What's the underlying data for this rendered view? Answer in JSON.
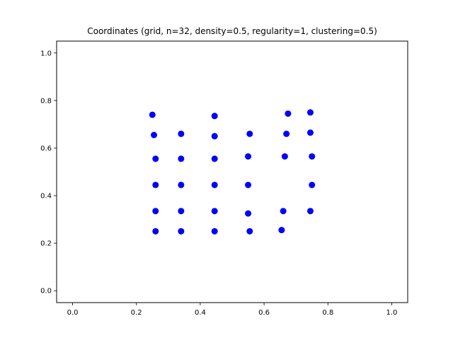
{
  "chart_data": {
    "type": "scatter",
    "title": "Coordinates (grid, n=32, density=0.5, regularity=1, clustering=0.5)",
    "xlabel": "",
    "ylabel": "",
    "xlim": [
      -0.05,
      1.05
    ],
    "ylim": [
      -0.05,
      1.05
    ],
    "xticks": [
      "0.0",
      "0.2",
      "0.4",
      "0.6",
      "0.8",
      "1.0"
    ],
    "yticks": [
      "0.0",
      "0.2",
      "0.4",
      "0.6",
      "0.8",
      "1.0"
    ],
    "grid": false,
    "legend": "none",
    "marker_color": "#0000ff",
    "series": [
      {
        "points": [
          [
            0.25,
            0.74
          ],
          [
            0.445,
            0.735
          ],
          [
            0.675,
            0.745
          ],
          [
            0.745,
            0.75
          ],
          [
            0.255,
            0.655
          ],
          [
            0.34,
            0.66
          ],
          [
            0.445,
            0.65
          ],
          [
            0.555,
            0.66
          ],
          [
            0.67,
            0.66
          ],
          [
            0.745,
            0.665
          ],
          [
            0.26,
            0.555
          ],
          [
            0.34,
            0.555
          ],
          [
            0.445,
            0.555
          ],
          [
            0.55,
            0.565
          ],
          [
            0.665,
            0.565
          ],
          [
            0.75,
            0.565
          ],
          [
            0.26,
            0.445
          ],
          [
            0.34,
            0.445
          ],
          [
            0.445,
            0.445
          ],
          [
            0.55,
            0.445
          ],
          [
            0.75,
            0.445
          ],
          [
            0.26,
            0.335
          ],
          [
            0.34,
            0.335
          ],
          [
            0.445,
            0.335
          ],
          [
            0.55,
            0.325
          ],
          [
            0.66,
            0.335
          ],
          [
            0.745,
            0.335
          ],
          [
            0.26,
            0.25
          ],
          [
            0.34,
            0.25
          ],
          [
            0.445,
            0.25
          ],
          [
            0.555,
            0.25
          ],
          [
            0.655,
            0.255
          ]
        ]
      }
    ]
  }
}
